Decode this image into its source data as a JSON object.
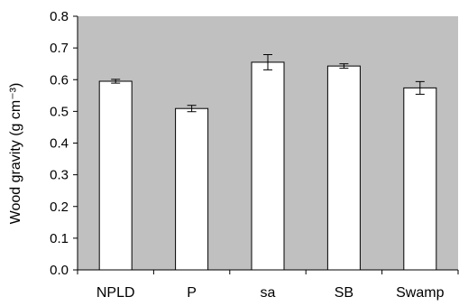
{
  "chart_data": {
    "type": "bar",
    "categories": [
      "NPLD",
      "P",
      "sa",
      "SB",
      "Swamp"
    ],
    "values": [
      0.595,
      0.509,
      0.655,
      0.643,
      0.574
    ],
    "errors": [
      0.006,
      0.01,
      0.024,
      0.007,
      0.02
    ],
    "ylabel": "Wood gravity (g cm⁻³)",
    "ylim": [
      0,
      0.8
    ],
    "yticks": [
      "0.0",
      "0.1",
      "0.2",
      "0.3",
      "0.4",
      "0.5",
      "0.6",
      "0.7",
      "0.8"
    ],
    "grid": false,
    "legend": "none",
    "colors": {
      "plot_background": "#c0c0c0",
      "bar_fill": "#ffffff",
      "bar_stroke": "#000000"
    }
  }
}
